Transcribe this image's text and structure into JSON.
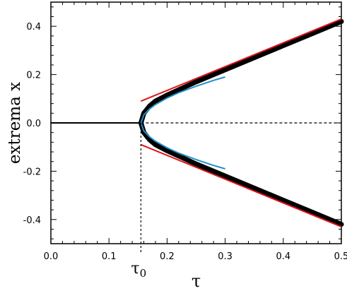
{
  "chart_data": {
    "type": "line",
    "xlabel": "τ",
    "ylabel": "extrema x",
    "xlim": [
      0.0,
      0.5
    ],
    "ylim": [
      -0.5,
      0.5
    ],
    "x_ticks": [
      "0.0",
      "0.1",
      "0.2",
      "0.3",
      "0.4",
      "0.5"
    ],
    "y_ticks": [
      "-0.4",
      "-0.2",
      "0.0",
      "0.2",
      "0.4"
    ],
    "annotation": {
      "label": "τ",
      "subscript": "0",
      "x": 0.155
    },
    "grid": false,
    "legend": "none",
    "series": [
      {
        "style": "solid-black-thick",
        "x": [
          0.155,
          0.16,
          0.17,
          0.18,
          0.2,
          0.25,
          0.3,
          0.35,
          0.4,
          0.45,
          0.5
        ],
        "y_upper": [
          0.0,
          0.04,
          0.07,
          0.09,
          0.115,
          0.17,
          0.22,
          0.27,
          0.32,
          0.37,
          0.42
        ],
        "y_lower": [
          0.0,
          -0.04,
          -0.07,
          -0.09,
          -0.115,
          -0.17,
          -0.22,
          -0.27,
          -0.32,
          -0.37,
          -0.42
        ]
      },
      {
        "style": "solid-black-thin",
        "x": [
          0.0,
          0.155
        ],
        "y": [
          0.0,
          0.0
        ]
      },
      {
        "style": "dashed-black",
        "x": [
          0.155,
          0.5
        ],
        "y": [
          0.0,
          0.0
        ]
      },
      {
        "style": "solid-red",
        "x": [
          0.155,
          0.5
        ],
        "y_upper": [
          0.09,
          0.43
        ],
        "y_lower": [
          -0.09,
          -0.43
        ]
      },
      {
        "style": "solid-blue",
        "x": [
          0.155,
          0.16,
          0.17,
          0.18,
          0.2,
          0.22,
          0.25,
          0.28,
          0.3
        ],
        "y_upper": [
          0.0,
          0.033,
          0.058,
          0.076,
          0.103,
          0.125,
          0.152,
          0.176,
          0.19
        ],
        "y_lower": [
          0.0,
          -0.033,
          -0.058,
          -0.076,
          -0.103,
          -0.125,
          -0.152,
          -0.176,
          -0.19
        ]
      }
    ],
    "colors": {
      "red": "#e0131a",
      "blue": "#1f90c8",
      "black": "#000000"
    }
  }
}
